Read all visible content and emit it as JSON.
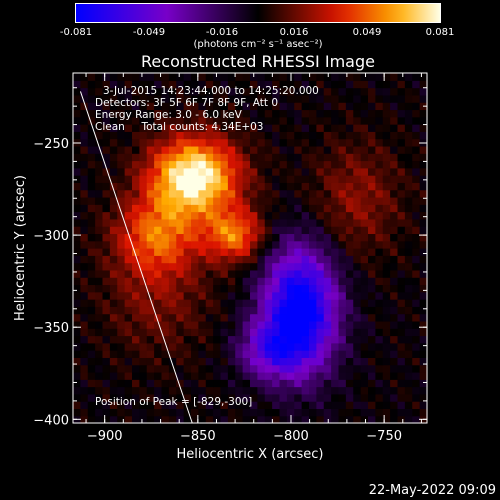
{
  "colorbar": {
    "ticks": [
      "-0.081",
      "-0.049",
      "-0.016",
      "0.016",
      "0.049",
      "0.081"
    ],
    "unit_label": "(photons cm⁻² s⁻¹ asec⁻²)"
  },
  "chart_data": {
    "type": "heatmap",
    "title": "Reconstructed RHESSI Image",
    "xlabel": "Heliocentric X (arcsec)",
    "ylabel": "Heliocentric Y (arcsec)",
    "xlim": [
      -917,
      -727
    ],
    "ylim": [
      -402,
      -212
    ],
    "xticks": [
      -900,
      -850,
      -800,
      -750
    ],
    "yticks": [
      -400,
      -350,
      -300,
      -250
    ],
    "xtick_labels": [
      "−900",
      "−850",
      "−800",
      "−750"
    ],
    "ytick_labels": [
      "−400",
      "−350",
      "−300",
      "−250"
    ],
    "zlim": [
      -0.081,
      0.081
    ],
    "peak": [
      -829,
      -300
    ],
    "limb_line": [
      [
        -913,
        -222
      ],
      [
        -853,
        -402
      ]
    ],
    "sources": [
      {
        "x": -852,
        "y": -268,
        "sx": 17,
        "sy": 15,
        "amp": 0.085
      },
      {
        "x": -830,
        "y": -300,
        "sx": 11,
        "sy": 10,
        "amp": 0.05
      },
      {
        "x": -872,
        "y": -300,
        "sx": 16,
        "sy": 15,
        "amp": 0.045
      },
      {
        "x": -872,
        "y": -335,
        "sx": 20,
        "sy": 22,
        "amp": 0.018
      },
      {
        "x": -795,
        "y": -340,
        "sx": 14,
        "sy": 24,
        "amp": -0.09
      },
      {
        "x": -812,
        "y": -362,
        "sx": 12,
        "sy": 11,
        "amp": -0.04
      },
      {
        "x": -765,
        "y": -280,
        "sx": 17,
        "sy": 22,
        "amp": 0.022
      }
    ],
    "annotations": [
      "3-Jul-2015 14:23:44.000 to 14:25:20.000",
      "Detectors: 3F 5F 6F 7F 8F 9F, Att 0",
      "Energy Range: 3.0 - 6.0 keV",
      "Clean     Total counts: 4.34E+03"
    ],
    "peak_label": "Position of Peak = [-829,-300]"
  },
  "footer": {
    "date": "22-May-2022 09:09"
  }
}
